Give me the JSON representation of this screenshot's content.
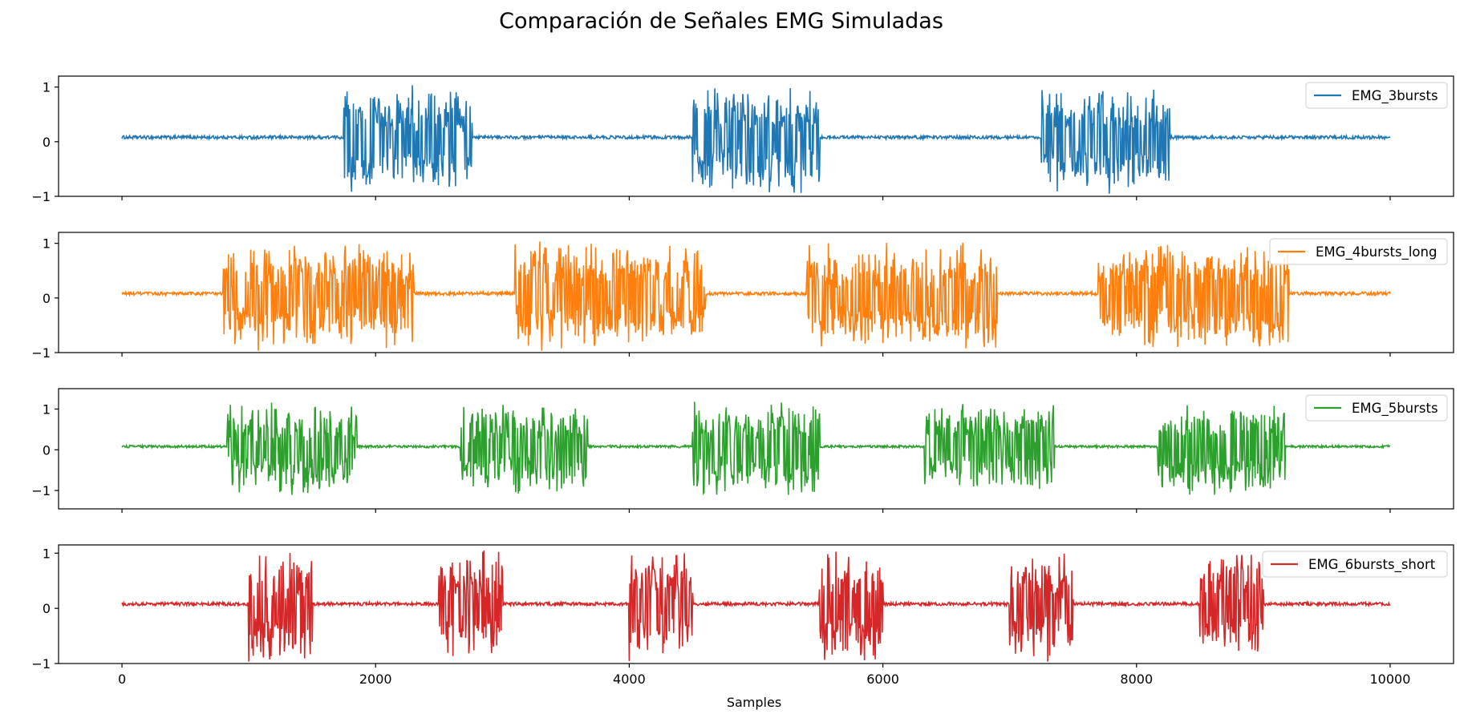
{
  "figure": {
    "title": "Comparación de Señales EMG Simuladas",
    "xlabel": "Samples"
  },
  "chart_data": [
    {
      "type": "line",
      "series": [
        {
          "name": "EMG_3bursts",
          "color": "#1f77b4"
        }
      ],
      "baseline": 0.08,
      "noise": 0.06,
      "burst_amplitude": 1.05,
      "bursts": [
        [
          1750,
          2760
        ],
        [
          4500,
          5500
        ],
        [
          7250,
          8260
        ]
      ],
      "xlim": [
        -500,
        10500
      ],
      "ylim": [
        -1.0,
        1.2
      ],
      "yticks": [
        {
          "v": 1,
          "label": "1"
        },
        {
          "v": 0,
          "label": "0"
        },
        {
          "v": -1,
          "label": "−1"
        }
      ],
      "legend": "top-right"
    },
    {
      "type": "line",
      "series": [
        {
          "name": "EMG_4bursts_long",
          "color": "#ff7f0e"
        }
      ],
      "baseline": 0.08,
      "noise": 0.06,
      "burst_amplitude": 1.05,
      "bursts": [
        [
          800,
          2300
        ],
        [
          3100,
          4600
        ],
        [
          5400,
          6900
        ],
        [
          7700,
          9200
        ]
      ],
      "xlim": [
        -500,
        10500
      ],
      "ylim": [
        -1.0,
        1.2
      ],
      "yticks": [
        {
          "v": 1,
          "label": "1"
        },
        {
          "v": 0,
          "label": "0"
        },
        {
          "v": -1,
          "label": "−1"
        }
      ],
      "legend": "top-right"
    },
    {
      "type": "line",
      "series": [
        {
          "name": "EMG_5bursts",
          "color": "#2ca02c"
        }
      ],
      "baseline": 0.08,
      "noise": 0.06,
      "burst_amplitude": 1.2,
      "bursts": [
        [
          830,
          1850
        ],
        [
          2670,
          3670
        ],
        [
          4500,
          5500
        ],
        [
          6330,
          7350
        ],
        [
          8170,
          9170
        ]
      ],
      "xlim": [
        -500,
        10500
      ],
      "ylim": [
        -1.45,
        1.5
      ],
      "yticks": [
        {
          "v": 1,
          "label": "1"
        },
        {
          "v": 0,
          "label": "0"
        },
        {
          "v": -1,
          "label": "−1"
        }
      ],
      "legend": "top-right"
    },
    {
      "type": "line",
      "series": [
        {
          "name": "EMG_6bursts_short",
          "color": "#d62728"
        }
      ],
      "baseline": 0.08,
      "noise": 0.06,
      "burst_amplitude": 1.05,
      "bursts": [
        [
          1000,
          1500
        ],
        [
          2500,
          3000
        ],
        [
          4000,
          4500
        ],
        [
          5500,
          6000
        ],
        [
          7000,
          7500
        ],
        [
          8500,
          9000
        ]
      ],
      "xlim": [
        -500,
        10500
      ],
      "ylim": [
        -1.0,
        1.15
      ],
      "yticks": [
        {
          "v": 1,
          "label": "1"
        },
        {
          "v": 0,
          "label": "0"
        },
        {
          "v": -1,
          "label": "−1"
        }
      ],
      "legend": "top-right",
      "xticks": [
        {
          "v": 0,
          "label": "0"
        },
        {
          "v": 2000,
          "label": "2000"
        },
        {
          "v": 4000,
          "label": "4000"
        },
        {
          "v": 6000,
          "label": "6000"
        },
        {
          "v": 8000,
          "label": "8000"
        },
        {
          "v": 10000,
          "label": "10000"
        }
      ]
    }
  ]
}
